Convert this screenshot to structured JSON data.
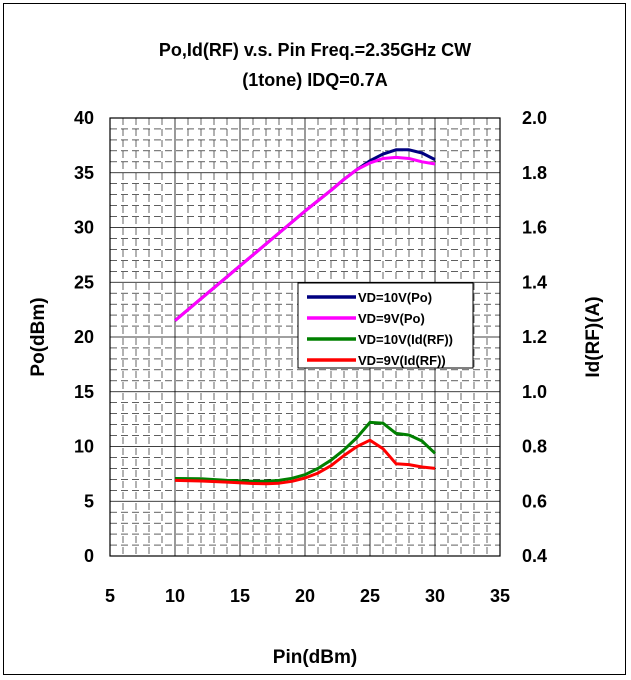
{
  "chart_data": {
    "type": "line",
    "title": "Po,Id(RF)  v.s.  Pin    Freq.=2.35GHz  CW",
    "subtitle": "(1tone)  IDQ=0.7A",
    "xlabel": "Pin(dBm)",
    "ylabel_left": "Po(dBm)",
    "ylabel_right": "Id(RF)(A)",
    "xlim": [
      5,
      35
    ],
    "ylim_left": [
      0,
      40
    ],
    "ylim_right": [
      0.4,
      2.0
    ],
    "x_ticks": [
      "5",
      "10",
      "15",
      "20",
      "25",
      "30",
      "35"
    ],
    "y_ticks_left": [
      "0",
      "5",
      "10",
      "15",
      "20",
      "25",
      "30",
      "35",
      "40"
    ],
    "y_ticks_right": [
      "0.4",
      "0.6",
      "0.8",
      "1.0",
      "1.2",
      "1.4",
      "1.6",
      "1.8",
      "2.0"
    ],
    "grid": true,
    "legend_position": "center-right",
    "series": [
      {
        "name": "VD=10V(Po)",
        "axis": "left",
        "color": "#000080",
        "x": [
          10,
          12,
          14,
          16,
          18,
          20,
          22,
          23,
          24,
          25,
          26,
          27,
          28,
          29,
          30
        ],
        "y": [
          21.5,
          23.5,
          25.5,
          27.5,
          29.5,
          31.5,
          33.4,
          34.4,
          35.3,
          36.1,
          36.7,
          37.1,
          37.1,
          36.8,
          36.2
        ]
      },
      {
        "name": "VD=9V(Po)",
        "axis": "left",
        "color": "#ff00ff",
        "x": [
          10,
          12,
          14,
          16,
          18,
          20,
          22,
          23,
          24,
          25,
          26,
          27,
          28,
          29,
          30
        ],
        "y": [
          21.5,
          23.5,
          25.5,
          27.5,
          29.5,
          31.5,
          33.4,
          34.4,
          35.3,
          35.9,
          36.3,
          36.4,
          36.3,
          36.0,
          35.8
        ]
      },
      {
        "name": "VD=10V(Id(RF))",
        "axis": "right",
        "color": "#008000",
        "x": [
          10,
          12,
          14,
          16,
          17,
          18,
          19,
          20,
          21,
          22,
          23,
          24,
          25,
          26,
          27,
          28,
          29,
          30
        ],
        "y": [
          0.683,
          0.682,
          0.676,
          0.673,
          0.673,
          0.676,
          0.684,
          0.697,
          0.72,
          0.75,
          0.788,
          0.833,
          0.888,
          0.885,
          0.848,
          0.842,
          0.82,
          0.775
        ]
      },
      {
        "name": "VD=9V(Id(RF))",
        "axis": "right",
        "color": "#ff0000",
        "x": [
          10,
          12,
          14,
          16,
          17,
          18,
          19,
          20,
          21,
          22,
          23,
          24,
          25,
          26,
          27,
          28,
          29,
          30
        ],
        "y": [
          0.676,
          0.674,
          0.67,
          0.665,
          0.664,
          0.666,
          0.673,
          0.685,
          0.703,
          0.73,
          0.767,
          0.8,
          0.823,
          0.792,
          0.737,
          0.734,
          0.725,
          0.72
        ]
      }
    ]
  }
}
